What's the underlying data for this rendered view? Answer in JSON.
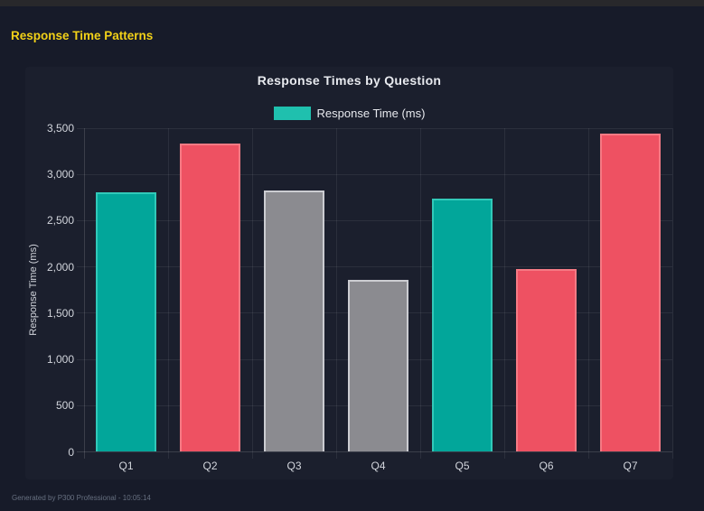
{
  "page": {
    "title": "Response Time Patterns"
  },
  "footer": {
    "text": "Generated by P300 Professional - 10:05:14"
  },
  "chart_data": {
    "type": "bar",
    "title": "Response Times by Question",
    "categories": [
      "Q1",
      "Q2",
      "Q3",
      "Q4",
      "Q5",
      "Q6",
      "Q7"
    ],
    "series": [
      {
        "name": "Response Time (ms)",
        "values": [
          2800,
          3330,
          2820,
          1855,
          2730,
          1970,
          3440
        ]
      }
    ],
    "bar_fill_colors": [
      "#02a69a",
      "#ee5162",
      "#8b8b90",
      "#8b8b90",
      "#02a69a",
      "#ee5162",
      "#ee5162"
    ],
    "bar_border_colors": [
      "#31c9b9",
      "#f57a84",
      "#cbccd1",
      "#cbccd1",
      "#31c9b9",
      "#f57a84",
      "#f57a84"
    ],
    "legend": [
      {
        "label": "Response Time (ms)",
        "color": "#1fc0ae"
      }
    ],
    "legend_position": "top",
    "xlabel": "",
    "ylabel": "Response Time (ms)",
    "ylim": [
      0,
      3500
    ],
    "ytick_step": 500,
    "ytick_labels": [
      "0",
      "500",
      "1,000",
      "1,500",
      "2,000",
      "2,500",
      "3,000",
      "3,500"
    ],
    "grid": true
  },
  "colors": {
    "page_background": "#171b29",
    "panel_background": "#1b1f2d",
    "top_bar": "#28282b",
    "page_title": "#f2d118",
    "chart_title": "#e7e9ee",
    "legend_text": "#e7e9ee",
    "tick_text": "#d2d5dc",
    "axis_title_text": "#d2d5dc",
    "gridline": "rgba(255,255,255,0.075)",
    "axis_line": "rgba(255,255,255,0.14)",
    "footer_text": "#677080"
  }
}
